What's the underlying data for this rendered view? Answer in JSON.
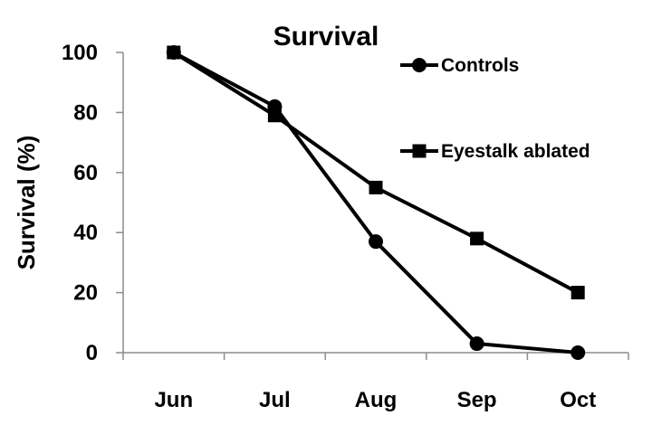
{
  "chart_data": {
    "type": "line",
    "title": "Survival",
    "xlabel": "",
    "ylabel": "Survival (%)",
    "categories": [
      "Jun",
      "Jul",
      "Aug",
      "Sep",
      "Oct"
    ],
    "ylim": [
      0,
      100
    ],
    "yticks": [
      0,
      20,
      40,
      60,
      80,
      100
    ],
    "grid": false,
    "legend_position": "top-right",
    "series": [
      {
        "name": "Controls",
        "marker": "circle",
        "color": "#000000",
        "values": [
          100,
          82,
          37,
          3,
          0
        ]
      },
      {
        "name": "Eyestalk ablated",
        "marker": "square",
        "color": "#000000",
        "values": [
          100,
          79,
          55,
          38,
          20
        ]
      }
    ]
  }
}
